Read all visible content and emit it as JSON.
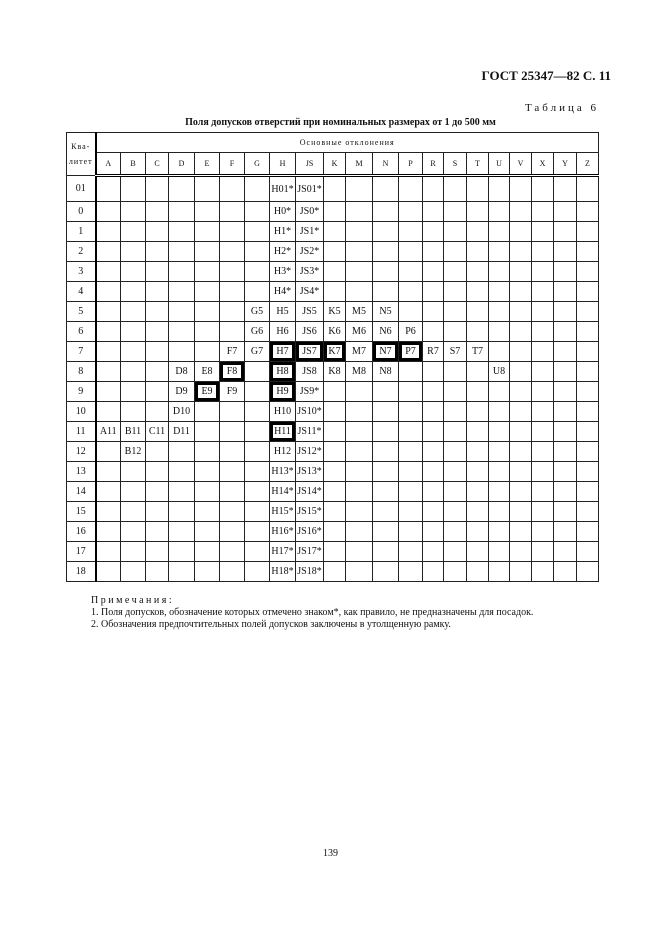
{
  "header": {
    "doc_ref": "ГОСТ 25347—82 С. 11"
  },
  "table_number": "Таблица 6",
  "table_title": "Поля допусков отверстий при номинальных размерах от 1 до 500 мм",
  "table": {
    "quality_header": "Ква-литет",
    "group_header": "Основные отклонения",
    "columns": [
      "A",
      "B",
      "C",
      "D",
      "E",
      "F",
      "G",
      "H",
      "JS",
      "K",
      "M",
      "N",
      "P",
      "R",
      "S",
      "T",
      "U",
      "V",
      "X",
      "Y",
      "Z"
    ],
    "rows": [
      {
        "q": "01",
        "cells": {
          "H": "H01*",
          "JS": "JS01*"
        }
      },
      {
        "q": "0",
        "cells": {
          "H": "H0*",
          "JS": "JS0*"
        }
      },
      {
        "q": "1",
        "cells": {
          "H": "H1*",
          "JS": "JS1*"
        }
      },
      {
        "q": "2",
        "cells": {
          "H": "H2*",
          "JS": "JS2*"
        }
      },
      {
        "q": "3",
        "cells": {
          "H": "H3*",
          "JS": "JS3*"
        }
      },
      {
        "q": "4",
        "cells": {
          "H": "H4*",
          "JS": "JS4*"
        }
      },
      {
        "q": "5",
        "cells": {
          "G": "G5",
          "H": "H5",
          "JS": "JS5",
          "K": "K5",
          "M": "M5",
          "N": "N5"
        }
      },
      {
        "q": "6",
        "cells": {
          "G": "G6",
          "H": "H6",
          "JS": "JS6",
          "K": "K6",
          "M": "M6",
          "N": "N6",
          "P": "P6"
        }
      },
      {
        "q": "7",
        "cells": {
          "F": "F7",
          "G": "G7",
          "H": "H7",
          "JS": "JS7",
          "K": "K7",
          "M": "M7",
          "N": "N7",
          "P": "P7",
          "R": "R7",
          "S": "S7",
          "T": "T7"
        }
      },
      {
        "q": "8",
        "cells": {
          "D": "D8",
          "E": "E8",
          "F": "F8",
          "H": "H8",
          "JS": "JS8",
          "K": "K8",
          "M": "M8",
          "N": "N8",
          "U": "U8"
        }
      },
      {
        "q": "9",
        "cells": {
          "D": "D9",
          "E": "E9",
          "F": "F9",
          "H": "H9",
          "JS": "JS9*"
        }
      },
      {
        "q": "10",
        "cells": {
          "D": "D10",
          "H": "H10",
          "JS": "JS10*"
        }
      },
      {
        "q": "11",
        "cells": {
          "A": "A11",
          "B": "B11",
          "C": "C11",
          "D": "D11",
          "H": "H11",
          "JS": "JS11*"
        }
      },
      {
        "q": "12",
        "cells": {
          "B": "B12",
          "H": "H12",
          "JS": "JS12*"
        }
      },
      {
        "q": "13",
        "cells": {
          "H": "H13*",
          "JS": "JS13*"
        }
      },
      {
        "q": "14",
        "cells": {
          "H": "H14*",
          "JS": "JS14*"
        }
      },
      {
        "q": "15",
        "cells": {
          "H": "H15*",
          "JS": "JS15*"
        }
      },
      {
        "q": "16",
        "cells": {
          "H": "H16*",
          "JS": "JS16*"
        }
      },
      {
        "q": "17",
        "cells": {
          "H": "H17*",
          "JS": "JS17*"
        }
      },
      {
        "q": "18",
        "cells": {
          "H": "H18*",
          "JS": "JS18*"
        }
      }
    ],
    "preferred_boxed": [
      "H7",
      "JS7",
      "K7",
      "N7",
      "P7",
      "F8",
      "H8",
      "E9",
      "H9",
      "H11"
    ]
  },
  "notes": {
    "heading": "Примечания:",
    "items": [
      "1. Поля допусков, обозначение которых отмечено знаком*, как правило, не предназначены для посадок.",
      "2. Обозначения предпочтительных полей допусков заключены в утолщенную рамку."
    ]
  },
  "page_number": "139"
}
